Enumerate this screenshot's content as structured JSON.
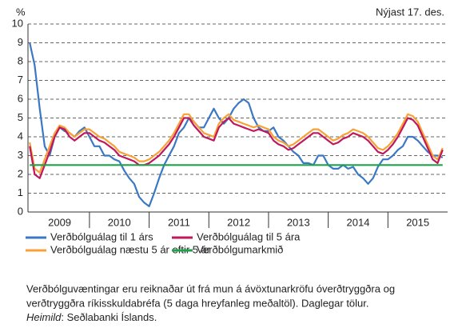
{
  "chart_data": {
    "type": "line",
    "y_unit": "%",
    "annotation": "Nýjast 17. des.",
    "x": [
      2009.0,
      2009.083,
      2009.167,
      2009.25,
      2009.333,
      2009.417,
      2009.5,
      2009.583,
      2009.667,
      2009.75,
      2009.833,
      2009.917,
      2010.0,
      2010.083,
      2010.167,
      2010.25,
      2010.333,
      2010.417,
      2010.5,
      2010.583,
      2010.667,
      2010.75,
      2010.833,
      2010.917,
      2011.0,
      2011.083,
      2011.167,
      2011.25,
      2011.333,
      2011.417,
      2011.5,
      2011.583,
      2011.667,
      2011.75,
      2011.833,
      2011.917,
      2012.0,
      2012.083,
      2012.167,
      2012.25,
      2012.333,
      2012.417,
      2012.5,
      2012.583,
      2012.667,
      2012.75,
      2012.833,
      2012.917,
      2013.0,
      2013.083,
      2013.167,
      2013.25,
      2013.333,
      2013.417,
      2013.5,
      2013.583,
      2013.667,
      2013.75,
      2013.833,
      2013.917,
      2014.0,
      2014.083,
      2014.167,
      2014.25,
      2014.333,
      2014.417,
      2014.5,
      2014.583,
      2014.667,
      2014.75,
      2014.833,
      2014.917,
      2015.0,
      2015.083,
      2015.167,
      2015.25,
      2015.333,
      2015.417,
      2015.5,
      2015.583,
      2015.667,
      2015.75,
      2015.833,
      2015.917
    ],
    "xlim": [
      2008.97,
      2016.0
    ],
    "xticks": [
      {
        "value": 2009.5,
        "label": "2009"
      },
      {
        "value": 2010.5,
        "label": "2010"
      },
      {
        "value": 2011.5,
        "label": "2011"
      },
      {
        "value": 2012.5,
        "label": "2012"
      },
      {
        "value": 2013.5,
        "label": "2013"
      },
      {
        "value": 2014.5,
        "label": "2014"
      },
      {
        "value": 2015.5,
        "label": "2015"
      }
    ],
    "ylim": [
      0,
      10
    ],
    "yticks": [
      0,
      1,
      2,
      3,
      4,
      5,
      6,
      7,
      8,
      9,
      10
    ],
    "grid": true,
    "series": [
      {
        "name": "Verðbólguálag til 1 árs",
        "color": "#3b78c4",
        "values": [
          9.0,
          7.8,
          5.5,
          3.5,
          3.0,
          4.0,
          4.5,
          4.3,
          4.2,
          4.0,
          4.3,
          4.5,
          4.0,
          3.5,
          3.5,
          3.0,
          3.0,
          2.8,
          2.7,
          2.2,
          1.8,
          1.5,
          0.8,
          0.5,
          0.3,
          1.0,
          1.8,
          2.5,
          3.0,
          3.5,
          4.2,
          4.5,
          5.0,
          4.8,
          4.5,
          4.5,
          5.0,
          5.5,
          5.0,
          4.7,
          5.0,
          5.5,
          5.8,
          6.0,
          5.8,
          5.0,
          4.5,
          4.3,
          4.3,
          4.5,
          4.0,
          3.8,
          3.5,
          3.2,
          3.0,
          2.6,
          2.6,
          2.5,
          3.0,
          3.0,
          2.5,
          2.3,
          2.3,
          2.5,
          2.3,
          2.4,
          2.0,
          1.8,
          1.5,
          1.8,
          2.4,
          2.8,
          2.8,
          3.0,
          3.3,
          3.5,
          4.0,
          4.0,
          3.8,
          3.5,
          3.2,
          3.0,
          3.0,
          2.9
        ]
      },
      {
        "name": "Verðbólguálag til 5 ára",
        "color": "#c0185a",
        "values": [
          3.5,
          2.0,
          1.8,
          2.5,
          3.2,
          4.0,
          4.5,
          4.4,
          4.0,
          3.8,
          4.0,
          4.2,
          4.2,
          4.0,
          3.8,
          3.7,
          3.5,
          3.3,
          3.0,
          2.9,
          2.8,
          2.7,
          2.5,
          2.5,
          2.6,
          2.8,
          3.0,
          3.3,
          3.6,
          4.0,
          4.5,
          5.0,
          5.0,
          4.6,
          4.3,
          4.0,
          3.9,
          3.8,
          4.5,
          4.8,
          5.0,
          4.7,
          4.6,
          4.5,
          4.4,
          4.3,
          4.4,
          4.3,
          4.2,
          3.8,
          3.6,
          3.5,
          3.3,
          3.4,
          3.6,
          3.8,
          4.0,
          4.2,
          4.2,
          4.0,
          3.8,
          3.6,
          3.7,
          3.9,
          4.0,
          4.2,
          4.1,
          4.0,
          3.8,
          3.5,
          3.2,
          3.1,
          3.3,
          3.6,
          4.0,
          4.5,
          5.0,
          4.9,
          4.6,
          4.0,
          3.4,
          2.8,
          2.6,
          3.3
        ]
      },
      {
        "name": "Verðbólguálag næstu 5 ár eftir 5 ár",
        "color": "#f7a136",
        "values": [
          3.7,
          2.3,
          2.1,
          2.8,
          3.5,
          4.2,
          4.6,
          4.5,
          4.2,
          4.0,
          4.2,
          4.4,
          4.4,
          4.2,
          4.0,
          3.9,
          3.7,
          3.5,
          3.2,
          3.1,
          3.0,
          2.9,
          2.7,
          2.7,
          2.8,
          3.0,
          3.2,
          3.5,
          3.8,
          4.2,
          4.7,
          5.2,
          5.2,
          4.8,
          4.5,
          4.2,
          4.1,
          4.0,
          4.7,
          5.0,
          5.2,
          4.9,
          4.8,
          4.7,
          4.6,
          4.5,
          4.6,
          4.5,
          4.4,
          4.0,
          3.8,
          3.7,
          3.5,
          3.6,
          3.8,
          4.0,
          4.2,
          4.4,
          4.4,
          4.2,
          4.0,
          3.8,
          3.9,
          4.1,
          4.2,
          4.4,
          4.3,
          4.2,
          4.0,
          3.7,
          3.4,
          3.3,
          3.5,
          3.8,
          4.2,
          4.7,
          5.2,
          5.1,
          4.8,
          4.2,
          3.6,
          3.0,
          2.8,
          3.4
        ]
      },
      {
        "name": "Verðbólgumarkmið",
        "color": "#1fa24b",
        "values": [
          2.5,
          2.5,
          2.5,
          2.5,
          2.5,
          2.5,
          2.5,
          2.5,
          2.5,
          2.5,
          2.5,
          2.5,
          2.5,
          2.5,
          2.5,
          2.5,
          2.5,
          2.5,
          2.5,
          2.5,
          2.5,
          2.5,
          2.5,
          2.5,
          2.5,
          2.5,
          2.5,
          2.5,
          2.5,
          2.5,
          2.5,
          2.5,
          2.5,
          2.5,
          2.5,
          2.5,
          2.5,
          2.5,
          2.5,
          2.5,
          2.5,
          2.5,
          2.5,
          2.5,
          2.5,
          2.5,
          2.5,
          2.5,
          2.5,
          2.5,
          2.5,
          2.5,
          2.5,
          2.5,
          2.5,
          2.5,
          2.5,
          2.5,
          2.5,
          2.5,
          2.5,
          2.5,
          2.5,
          2.5,
          2.5,
          2.5,
          2.5,
          2.5,
          2.5,
          2.5,
          2.5,
          2.5,
          2.5,
          2.5,
          2.5,
          2.5,
          2.5,
          2.5,
          2.5,
          2.5,
          2.5,
          2.5,
          2.5,
          2.5
        ]
      }
    ],
    "draw_order": [
      0,
      2,
      1,
      3
    ],
    "note": "Verðbólguvæntingar eru reiknaðar út frá mun á ávöxtunarkröfu óverðtryggðra og",
    "note_line2": "verðtryggðra ríkisskuldabréfa (5 daga hreyfanleg meðaltöl). Daglegar tölur.",
    "source_label": "Heimild",
    "source_text": ": Seðlabanki Íslands."
  }
}
